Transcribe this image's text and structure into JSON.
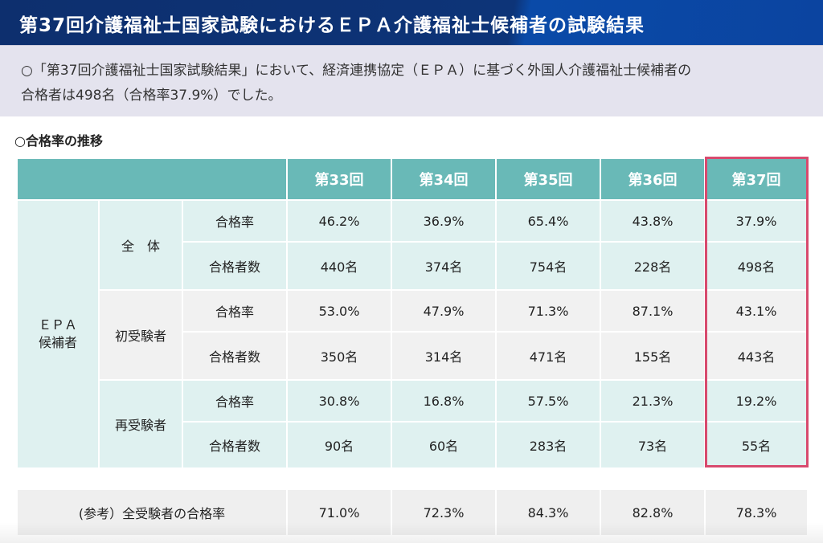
{
  "header": {
    "title": "第37回介護福祉士国家試験におけるＥＰＡ介護福祉士候補者の試験結果"
  },
  "intro": {
    "line1": "○「第37回介護福祉士国家試験結果」において、経済連携協定（ＥＰＡ）に基づく外国人介護福祉士候補者の",
    "line2": "合格者は498名（合格率37.9%）でした。"
  },
  "section_title": "○合格率の推移",
  "colors": {
    "header_bg": "#0d2f6e",
    "table_header": "#69b9b7",
    "row_teal": "#dff1f0",
    "row_grey": "#f1f1f1",
    "highlight": "#d84a6e"
  },
  "table": {
    "columns": [
      "第33回",
      "第34回",
      "第35回",
      "第36回",
      "第37回"
    ],
    "row_header": "ＥＰＡ\n候補者",
    "groups": [
      {
        "label": "全　体",
        "rows": [
          {
            "metric": "合格率",
            "values": [
              "46.2%",
              "36.9%",
              "65.4%",
              "43.8%",
              "37.9%"
            ]
          },
          {
            "metric": "合格者数",
            "values": [
              "440名",
              "374名",
              "754名",
              "228名",
              "498名"
            ]
          }
        ]
      },
      {
        "label": "初受験者",
        "rows": [
          {
            "metric": "合格率",
            "values": [
              "53.0%",
              "47.9%",
              "71.3%",
              "87.1%",
              "43.1%"
            ]
          },
          {
            "metric": "合格者数",
            "values": [
              "350名",
              "314名",
              "471名",
              "155名",
              "443名"
            ]
          }
        ]
      },
      {
        "label": "再受験者",
        "rows": [
          {
            "metric": "合格率",
            "values": [
              "30.8%",
              "16.8%",
              "57.5%",
              "21.3%",
              "19.2%"
            ]
          },
          {
            "metric": "合格者数",
            "values": [
              "90名",
              "60名",
              "283名",
              "73名",
              "55名"
            ]
          }
        ]
      }
    ],
    "reference": {
      "label": "(参考）全受験者の合格率",
      "values": [
        "71.0%",
        "72.3%",
        "84.3%",
        "82.8%",
        "78.3%"
      ]
    }
  }
}
